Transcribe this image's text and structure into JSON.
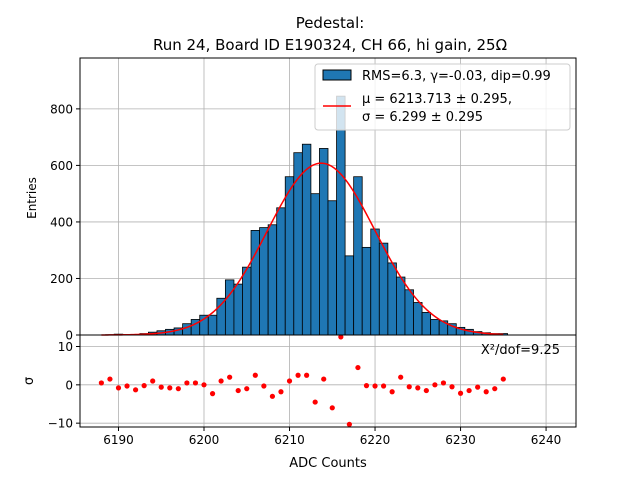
{
  "chart_data": [
    {
      "type": "bar",
      "title_line1": "Pedestal:",
      "title_line2": "Run 24, Board ID E190324, CH 66, hi gain, 25Ω",
      "xlabel": "",
      "ylabel": "Entries",
      "xlim": [
        6185.5,
        6243.5
      ],
      "ylim": [
        0,
        980
      ],
      "yticks": [
        0,
        200,
        400,
        600,
        800
      ],
      "grid": true,
      "legend_position": "top-right",
      "bin_width": 1,
      "bins_x": [
        6188,
        6189,
        6190,
        6191,
        6192,
        6193,
        6194,
        6195,
        6196,
        6197,
        6198,
        6199,
        6200,
        6201,
        6202,
        6203,
        6204,
        6205,
        6206,
        6207,
        6208,
        6209,
        6210,
        6211,
        6212,
        6213,
        6214,
        6215,
        6216,
        6217,
        6218,
        6219,
        6220,
        6221,
        6222,
        6223,
        6224,
        6225,
        6226,
        6227,
        6228,
        6229,
        6230,
        6231,
        6232,
        6233,
        6234,
        6235
      ],
      "values": [
        0,
        1,
        3,
        2,
        2,
        5,
        10,
        15,
        20,
        25,
        40,
        55,
        70,
        70,
        130,
        195,
        180,
        240,
        370,
        380,
        390,
        450,
        560,
        645,
        675,
        500,
        660,
        475,
        845,
        280,
        560,
        310,
        375,
        325,
        255,
        205,
        160,
        115,
        80,
        55,
        50,
        40,
        27,
        20,
        12,
        8,
        5,
        5
      ],
      "series": [
        {
          "name": "RMS=6.3, γ=-0.03, dip=0.99",
          "kind": "histogram",
          "color": "#1f77b4"
        },
        {
          "name_line1": "μ = 6213.713 ± 0.295,",
          "name_line2": "σ = 6.299 ± 0.295",
          "kind": "gaussian-fit",
          "color": "#ff0000"
        }
      ],
      "fit": {
        "amplitude": 608,
        "mu": 6213.713,
        "sigma": 6.299,
        "x_range": [
          6188,
          6235
        ]
      }
    },
    {
      "type": "scatter",
      "xlabel": "ADC Counts",
      "ylabel": "σ",
      "xlim": [
        6185.5,
        6243.5
      ],
      "ylim": [
        -11,
        13
      ],
      "xticks": [
        6190,
        6200,
        6210,
        6220,
        6230,
        6240
      ],
      "yticks": [
        -10,
        0,
        10
      ],
      "grid": true,
      "annotation": "X²/dof=9.25",
      "color": "#ff0000",
      "x": [
        6188,
        6189,
        6190,
        6191,
        6192,
        6193,
        6194,
        6195,
        6196,
        6197,
        6198,
        6199,
        6200,
        6201,
        6202,
        6203,
        6204,
        6205,
        6206,
        6207,
        6208,
        6209,
        6210,
        6211,
        6212,
        6213,
        6214,
        6215,
        6216,
        6217,
        6218,
        6219,
        6220,
        6221,
        6222,
        6223,
        6224,
        6225,
        6226,
        6227,
        6228,
        6229,
        6230,
        6231,
        6232,
        6233,
        6234,
        6235
      ],
      "y": [
        0.5,
        1.5,
        -0.8,
        -0.3,
        -1.3,
        -0.2,
        1.0,
        -0.6,
        -0.8,
        -1.0,
        0.5,
        0.5,
        0.0,
        -2.3,
        1.0,
        2.0,
        -1.5,
        -1.0,
        2.5,
        -0.3,
        -3.0,
        -1.8,
        1.0,
        2.5,
        2.5,
        -4.5,
        1.5,
        -6.0,
        12.5,
        -10.3,
        4.5,
        -0.2,
        -0.3,
        -0.3,
        -1.8,
        2.0,
        -0.5,
        -0.8,
        -1.5,
        0.0,
        0.5,
        -0.5,
        -2.2,
        -1.5,
        -0.6,
        -1.8,
        -1.0,
        1.5
      ]
    }
  ]
}
